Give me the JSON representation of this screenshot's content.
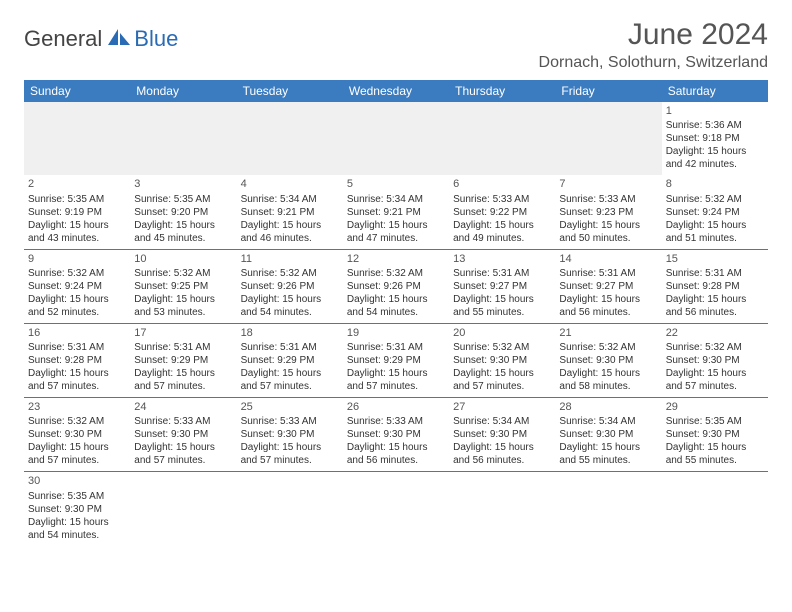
{
  "brand": {
    "part1": "General",
    "part2": "Blue"
  },
  "title": "June 2024",
  "location": "Dornach, Solothurn, Switzerland",
  "colors": {
    "header_bg": "#3b7bbf",
    "header_text": "#ffffff",
    "brand_blue": "#2a6bb5",
    "text": "#333333",
    "muted": "#555555",
    "blank_bg": "#f0f0f0",
    "rule": "#3b7bbf"
  },
  "typography": {
    "title_fontsize": 30,
    "location_fontsize": 16,
    "dayheader_fontsize": 12,
    "cell_fontsize": 10,
    "daynum_fontsize": 11
  },
  "day_names": [
    "Sunday",
    "Monday",
    "Tuesday",
    "Wednesday",
    "Thursday",
    "Friday",
    "Saturday"
  ],
  "weeks": [
    [
      null,
      null,
      null,
      null,
      null,
      null,
      {
        "n": "1",
        "sunrise": "Sunrise: 5:36 AM",
        "sunset": "Sunset: 9:18 PM",
        "day1": "Daylight: 15 hours",
        "day2": "and 42 minutes."
      }
    ],
    [
      {
        "n": "2",
        "sunrise": "Sunrise: 5:35 AM",
        "sunset": "Sunset: 9:19 PM",
        "day1": "Daylight: 15 hours",
        "day2": "and 43 minutes."
      },
      {
        "n": "3",
        "sunrise": "Sunrise: 5:35 AM",
        "sunset": "Sunset: 9:20 PM",
        "day1": "Daylight: 15 hours",
        "day2": "and 45 minutes."
      },
      {
        "n": "4",
        "sunrise": "Sunrise: 5:34 AM",
        "sunset": "Sunset: 9:21 PM",
        "day1": "Daylight: 15 hours",
        "day2": "and 46 minutes."
      },
      {
        "n": "5",
        "sunrise": "Sunrise: 5:34 AM",
        "sunset": "Sunset: 9:21 PM",
        "day1": "Daylight: 15 hours",
        "day2": "and 47 minutes."
      },
      {
        "n": "6",
        "sunrise": "Sunrise: 5:33 AM",
        "sunset": "Sunset: 9:22 PM",
        "day1": "Daylight: 15 hours",
        "day2": "and 49 minutes."
      },
      {
        "n": "7",
        "sunrise": "Sunrise: 5:33 AM",
        "sunset": "Sunset: 9:23 PM",
        "day1": "Daylight: 15 hours",
        "day2": "and 50 minutes."
      },
      {
        "n": "8",
        "sunrise": "Sunrise: 5:32 AM",
        "sunset": "Sunset: 9:24 PM",
        "day1": "Daylight: 15 hours",
        "day2": "and 51 minutes."
      }
    ],
    [
      {
        "n": "9",
        "sunrise": "Sunrise: 5:32 AM",
        "sunset": "Sunset: 9:24 PM",
        "day1": "Daylight: 15 hours",
        "day2": "and 52 minutes."
      },
      {
        "n": "10",
        "sunrise": "Sunrise: 5:32 AM",
        "sunset": "Sunset: 9:25 PM",
        "day1": "Daylight: 15 hours",
        "day2": "and 53 minutes."
      },
      {
        "n": "11",
        "sunrise": "Sunrise: 5:32 AM",
        "sunset": "Sunset: 9:26 PM",
        "day1": "Daylight: 15 hours",
        "day2": "and 54 minutes."
      },
      {
        "n": "12",
        "sunrise": "Sunrise: 5:32 AM",
        "sunset": "Sunset: 9:26 PM",
        "day1": "Daylight: 15 hours",
        "day2": "and 54 minutes."
      },
      {
        "n": "13",
        "sunrise": "Sunrise: 5:31 AM",
        "sunset": "Sunset: 9:27 PM",
        "day1": "Daylight: 15 hours",
        "day2": "and 55 minutes."
      },
      {
        "n": "14",
        "sunrise": "Sunrise: 5:31 AM",
        "sunset": "Sunset: 9:27 PM",
        "day1": "Daylight: 15 hours",
        "day2": "and 56 minutes."
      },
      {
        "n": "15",
        "sunrise": "Sunrise: 5:31 AM",
        "sunset": "Sunset: 9:28 PM",
        "day1": "Daylight: 15 hours",
        "day2": "and 56 minutes."
      }
    ],
    [
      {
        "n": "16",
        "sunrise": "Sunrise: 5:31 AM",
        "sunset": "Sunset: 9:28 PM",
        "day1": "Daylight: 15 hours",
        "day2": "and 57 minutes."
      },
      {
        "n": "17",
        "sunrise": "Sunrise: 5:31 AM",
        "sunset": "Sunset: 9:29 PM",
        "day1": "Daylight: 15 hours",
        "day2": "and 57 minutes."
      },
      {
        "n": "18",
        "sunrise": "Sunrise: 5:31 AM",
        "sunset": "Sunset: 9:29 PM",
        "day1": "Daylight: 15 hours",
        "day2": "and 57 minutes."
      },
      {
        "n": "19",
        "sunrise": "Sunrise: 5:31 AM",
        "sunset": "Sunset: 9:29 PM",
        "day1": "Daylight: 15 hours",
        "day2": "and 57 minutes."
      },
      {
        "n": "20",
        "sunrise": "Sunrise: 5:32 AM",
        "sunset": "Sunset: 9:30 PM",
        "day1": "Daylight: 15 hours",
        "day2": "and 57 minutes."
      },
      {
        "n": "21",
        "sunrise": "Sunrise: 5:32 AM",
        "sunset": "Sunset: 9:30 PM",
        "day1": "Daylight: 15 hours",
        "day2": "and 58 minutes."
      },
      {
        "n": "22",
        "sunrise": "Sunrise: 5:32 AM",
        "sunset": "Sunset: 9:30 PM",
        "day1": "Daylight: 15 hours",
        "day2": "and 57 minutes."
      }
    ],
    [
      {
        "n": "23",
        "sunrise": "Sunrise: 5:32 AM",
        "sunset": "Sunset: 9:30 PM",
        "day1": "Daylight: 15 hours",
        "day2": "and 57 minutes."
      },
      {
        "n": "24",
        "sunrise": "Sunrise: 5:33 AM",
        "sunset": "Sunset: 9:30 PM",
        "day1": "Daylight: 15 hours",
        "day2": "and 57 minutes."
      },
      {
        "n": "25",
        "sunrise": "Sunrise: 5:33 AM",
        "sunset": "Sunset: 9:30 PM",
        "day1": "Daylight: 15 hours",
        "day2": "and 57 minutes."
      },
      {
        "n": "26",
        "sunrise": "Sunrise: 5:33 AM",
        "sunset": "Sunset: 9:30 PM",
        "day1": "Daylight: 15 hours",
        "day2": "and 56 minutes."
      },
      {
        "n": "27",
        "sunrise": "Sunrise: 5:34 AM",
        "sunset": "Sunset: 9:30 PM",
        "day1": "Daylight: 15 hours",
        "day2": "and 56 minutes."
      },
      {
        "n": "28",
        "sunrise": "Sunrise: 5:34 AM",
        "sunset": "Sunset: 9:30 PM",
        "day1": "Daylight: 15 hours",
        "day2": "and 55 minutes."
      },
      {
        "n": "29",
        "sunrise": "Sunrise: 5:35 AM",
        "sunset": "Sunset: 9:30 PM",
        "day1": "Daylight: 15 hours",
        "day2": "and 55 minutes."
      }
    ],
    [
      {
        "n": "30",
        "sunrise": "Sunrise: 5:35 AM",
        "sunset": "Sunset: 9:30 PM",
        "day1": "Daylight: 15 hours",
        "day2": "and 54 minutes."
      },
      null,
      null,
      null,
      null,
      null,
      null
    ]
  ]
}
